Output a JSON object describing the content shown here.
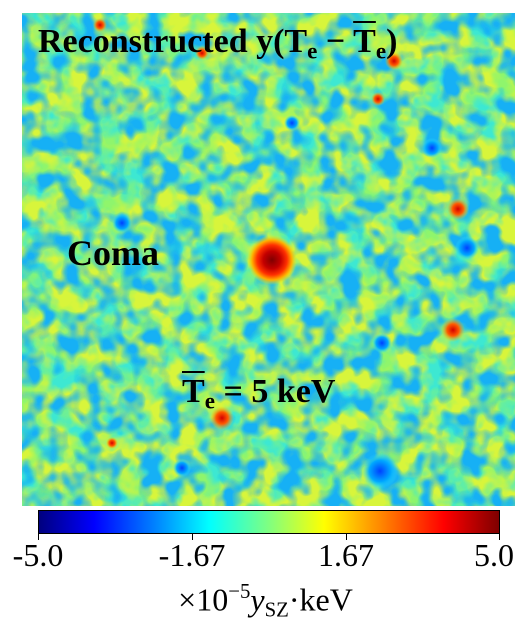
{
  "map": {
    "title_main": "Reconstructed y(T",
    "title_sub_e": "e",
    "title_minus": " − ",
    "title_tbar": "T",
    "title_sub_e2": "e",
    "title_close": ")",
    "cluster_label": "Coma",
    "temp_tbar": "T",
    "temp_sub": "e",
    "temp_value": " = 5 keV"
  },
  "colorbar": {
    "ticks": [
      "-5.0",
      "-1.67",
      "1.67",
      "5.0"
    ],
    "range": [
      -5.0,
      5.0
    ],
    "colormap": "jet",
    "label_prefix": "×10",
    "label_exp": "−5",
    "label_y": "y",
    "label_sub": "SZ",
    "label_unit": "·keV"
  },
  "colors": {
    "low": "#00007f",
    "mid": "#7fff7f",
    "high": "#7f0000"
  }
}
